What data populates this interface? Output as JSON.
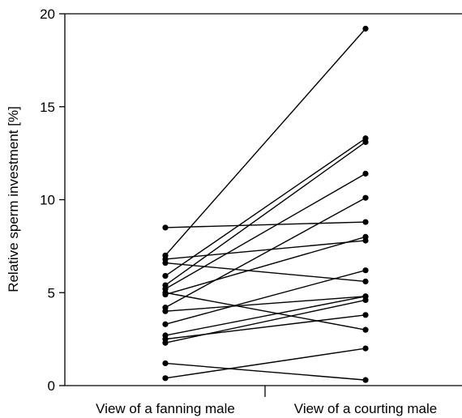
{
  "chart_data": {
    "type": "line",
    "title": "",
    "ylabel": "Relative sperm investment [%]",
    "xlabel": "",
    "categories": [
      "View of a fanning male",
      "View of a courting male"
    ],
    "ylim": [
      0,
      20
    ],
    "yticks": [
      0,
      5,
      10,
      15,
      20
    ],
    "grid": false,
    "line_color": "#000000",
    "pairs": [
      [
        8.5,
        8.8
      ],
      [
        7.0,
        19.2
      ],
      [
        6.8,
        7.8
      ],
      [
        6.6,
        5.6
      ],
      [
        5.9,
        13.3
      ],
      [
        5.4,
        13.1
      ],
      [
        5.2,
        11.4
      ],
      [
        5.0,
        3.0
      ],
      [
        4.9,
        8.0
      ],
      [
        4.2,
        10.1
      ],
      [
        4.0,
        4.8
      ],
      [
        3.3,
        6.2
      ],
      [
        2.7,
        4.8
      ],
      [
        2.5,
        3.8
      ],
      [
        2.3,
        4.6
      ],
      [
        1.2,
        0.3
      ],
      [
        0.4,
        2.0
      ]
    ]
  }
}
